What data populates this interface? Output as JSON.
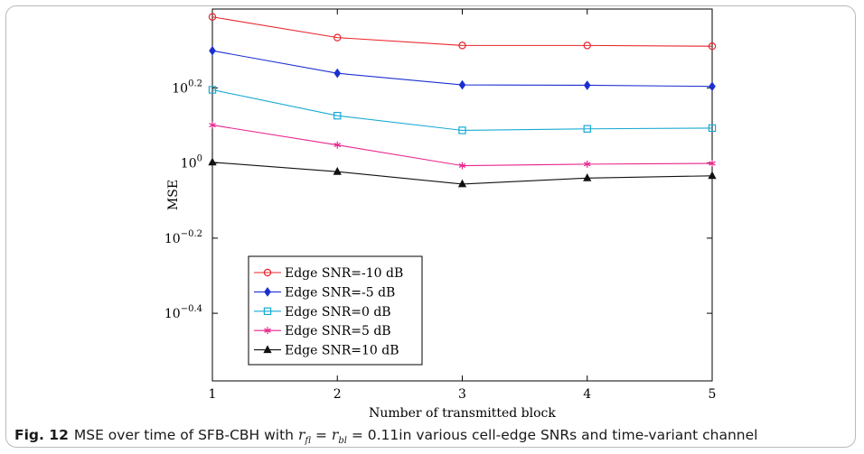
{
  "caption": {
    "label": "Fig. 12",
    "text_before": "MSE over time of SFB-CBH with",
    "formula": {
      "var1": "r",
      "sub1": "fl",
      "eq1": " = ",
      "var2": "r",
      "sub2": "bl",
      "eq2": " = 0.11"
    },
    "text_after": "in various cell-edge SNRs and time-variant channel"
  },
  "chart_data": {
    "type": "line",
    "title": "",
    "xlabel": "Number of transmitted block",
    "ylabel": "MSE",
    "yscale": "log10",
    "x": [
      1,
      2,
      3,
      4,
      5
    ],
    "xlim": [
      1,
      5
    ],
    "ylim_log10": [
      -0.58,
      0.41
    ],
    "xticks": [
      {
        "value": 1,
        "label": "1"
      },
      {
        "value": 2,
        "label": "2"
      },
      {
        "value": 3,
        "label": "3"
      },
      {
        "value": 4,
        "label": "4"
      },
      {
        "value": 5,
        "label": "5"
      }
    ],
    "yticks": [
      {
        "log10": 0.2,
        "base": "10",
        "exp": "0.2"
      },
      {
        "log10": 0.0,
        "base": "10",
        "exp": "0"
      },
      {
        "log10": -0.2,
        "base": "10",
        "exp": "−0.2"
      },
      {
        "log10": -0.4,
        "base": "10",
        "exp": "−0.4"
      }
    ],
    "grid": false,
    "legend_position": "lower-left",
    "series": [
      {
        "name": "Edge SNR=-10 dB",
        "color": "#e8252b",
        "marker": "circle",
        "log10_values": [
          0.389,
          0.334,
          0.313,
          0.313,
          0.311
        ]
      },
      {
        "name": "Edge SNR=-5 dB",
        "color": "#1c2fd1",
        "marker": "diamond",
        "log10_values": [
          0.299,
          0.239,
          0.208,
          0.207,
          0.204
        ]
      },
      {
        "name": "Edge SNR=0 dB",
        "color": "#19a9d3",
        "marker": "square",
        "log10_values": [
          0.195,
          0.126,
          0.087,
          0.091,
          0.093
        ]
      },
      {
        "name": "Edge SNR=5 dB",
        "color": "#e8238c",
        "marker": "asterisk",
        "log10_values": [
          0.101,
          0.048,
          -0.007,
          -0.003,
          -0.001
        ]
      },
      {
        "name": "Edge SNR=10 dB",
        "color": "#111111",
        "marker": "triangle",
        "log10_values": [
          0.002,
          -0.023,
          -0.056,
          -0.04,
          -0.034
        ]
      }
    ]
  }
}
